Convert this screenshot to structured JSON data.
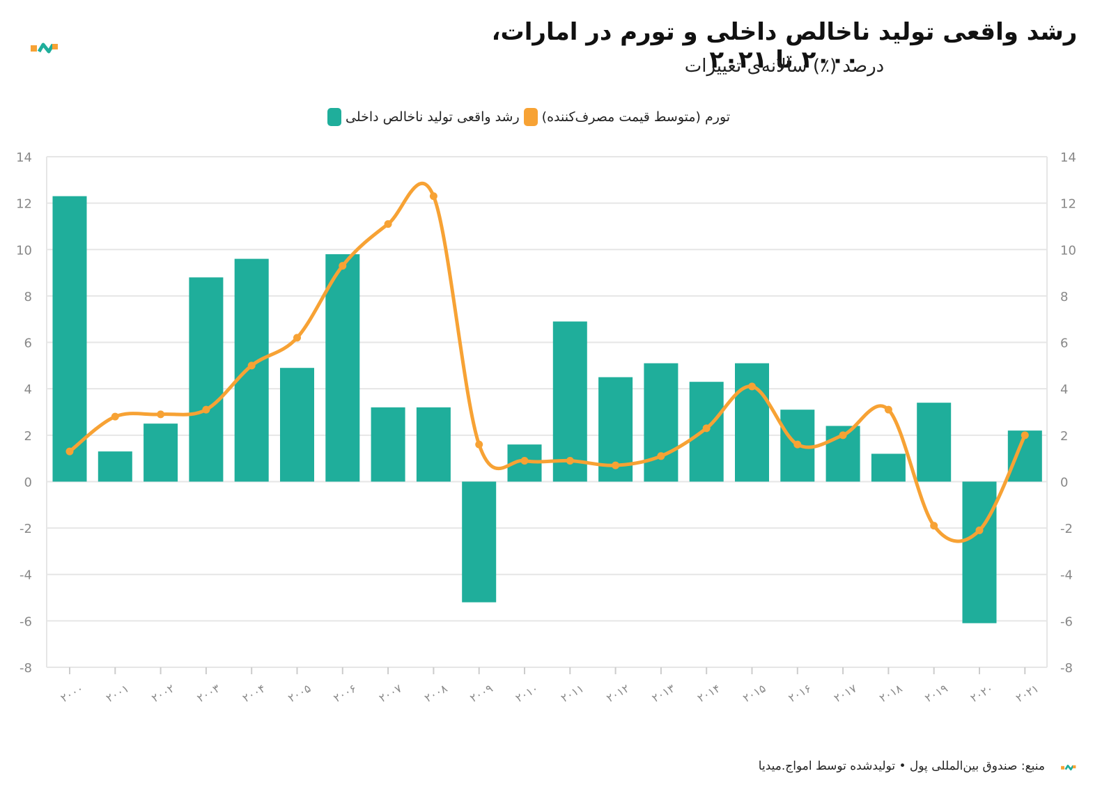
{
  "title": "رشد واقعی تولید ناخالص داخلی و تورم در امارات، ۲۰۰۰ تا ۲۰۲۱",
  "subtitle": "درصد (٪) سالانه‌ی تغییرات",
  "source": "منبع: صندوق بین‌المللی پول • تولیدشده توسط امواج.میدیا",
  "colors": {
    "gdp": "#1fae9b",
    "inflation": "#f7a234",
    "logo_orange": "#f7a234",
    "logo_teal": "#1fae9b"
  },
  "chart_data": {
    "type": "bar",
    "categories": [
      "۲۰۰۰",
      "۲۰۰۱",
      "۲۰۰۲",
      "۲۰۰۳",
      "۲۰۰۴",
      "۲۰۰۵",
      "۲۰۰۶",
      "۲۰۰۷",
      "۲۰۰۸",
      "۲۰۰۹",
      "۲۰۱۰",
      "۲۰۱۱",
      "۲۰۱۲",
      "۲۰۱۳",
      "۲۰۱۴",
      "۲۰۱۵",
      "۲۰۱۶",
      "۲۰۱۷",
      "۲۰۱۸",
      "۲۰۱۹",
      "۲۰۲۰",
      "۲۰۲۱"
    ],
    "series": [
      {
        "name": "رشد واقعی تولید ناخالص داخلی",
        "type": "bar",
        "color": "#1fae9b",
        "values": [
          12.3,
          1.3,
          2.5,
          8.8,
          9.6,
          4.9,
          9.8,
          3.2,
          3.2,
          -5.2,
          1.6,
          6.9,
          4.5,
          5.1,
          4.3,
          5.1,
          3.1,
          2.4,
          1.2,
          3.4,
          -6.1,
          2.2
        ]
      },
      {
        "name": "تورم (متوسط قیمت مصرف‌کننده)",
        "type": "line",
        "color": "#f7a234",
        "values": [
          1.3,
          2.8,
          2.9,
          3.1,
          5.0,
          6.2,
          9.3,
          11.1,
          12.3,
          1.6,
          0.9,
          0.9,
          0.7,
          1.1,
          2.3,
          4.1,
          1.6,
          2.0,
          3.1,
          -1.9,
          -2.1,
          2.0
        ]
      }
    ],
    "ylim": [
      -8,
      14
    ],
    "yticks": [
      -8,
      -6,
      -4,
      -2,
      0,
      2,
      4,
      6,
      8,
      10,
      12,
      14
    ],
    "grid": true,
    "legend_position": "top-center",
    "xlabel": "",
    "ylabel": ""
  }
}
